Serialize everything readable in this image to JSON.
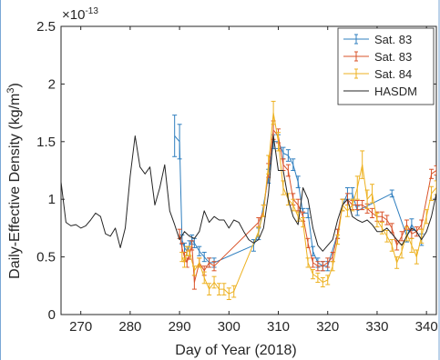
{
  "chart_data": {
    "type": "line",
    "title": "",
    "xlabel": "Day of Year (2018)",
    "ylabel": "Daily-Effective Density (kg/m³)",
    "ylabel_parts": {
      "main": "Daily-Effective Density (kg/m",
      "sup": "3",
      "close": ")"
    },
    "y_multiplier": {
      "base": "×10",
      "exponent": "-13"
    },
    "xlim": [
      266,
      342
    ],
    "ylim": [
      0,
      2.5
    ],
    "xticks": [
      270,
      280,
      290,
      300,
      310,
      320,
      330,
      340
    ],
    "yticks": [
      0,
      0.5,
      1,
      1.5,
      2,
      2.5
    ],
    "ytick_labels": [
      "0",
      "0.5",
      "1",
      "1.5",
      "2",
      "2.5"
    ],
    "legend_position": "top-right",
    "grid": false,
    "series": [
      {
        "name": "Sat. 83",
        "color": "#2f7fbf",
        "style": "errorbar",
        "points": [
          [
            289,
            1.55,
            0.18
          ],
          [
            290,
            1.5,
            0.15
          ],
          [
            290.5,
            0.65,
            0.04
          ],
          [
            291,
            0.58,
            0.04
          ],
          [
            291.5,
            0.55,
            0.04
          ],
          [
            292,
            0.6,
            0.04
          ],
          [
            292.5,
            0.65,
            0.04
          ],
          [
            293,
            0.62,
            0.04
          ],
          [
            294,
            0.55,
            0.04
          ],
          [
            295,
            0.5,
            0.04
          ],
          [
            296,
            0.45,
            0.04
          ],
          [
            297,
            0.45,
            0.04
          ],
          [
            305,
            0.6,
            0.05
          ],
          [
            306,
            0.7,
            0.05
          ],
          [
            308,
            1.2,
            0.06
          ],
          [
            309,
            1.5,
            0.06
          ],
          [
            310,
            1.5,
            0.06
          ],
          [
            311,
            1.4,
            0.05
          ],
          [
            312,
            1.38,
            0.05
          ],
          [
            313,
            1.3,
            0.05
          ],
          [
            314,
            1.15,
            0.05
          ],
          [
            315,
            0.88,
            0.04
          ],
          [
            316,
            0.88,
            0.04
          ],
          [
            317,
            0.55,
            0.04
          ],
          [
            318,
            0.45,
            0.04
          ],
          [
            319,
            0.42,
            0.04
          ],
          [
            320,
            0.42,
            0.04
          ],
          [
            322,
            0.7,
            0.04
          ],
          [
            323,
            0.95,
            0.05
          ],
          [
            324,
            1.05,
            0.05
          ],
          [
            325,
            1.05,
            0.05
          ],
          [
            326,
            0.9,
            0.04
          ],
          [
            333,
            1.05,
            0.03
          ],
          [
            336,
            0.68,
            0.05
          ],
          [
            337,
            0.78,
            0.05
          ],
          [
            339,
            0.65,
            0.05
          ]
        ]
      },
      {
        "name": "Sat. 83",
        "color": "#d9532a",
        "style": "errorbar",
        "points": [
          [
            290,
            0.7,
            0.04
          ],
          [
            290.5,
            0.58,
            0.04
          ],
          [
            291,
            0.5,
            0.04
          ],
          [
            291.5,
            0.45,
            0.04
          ],
          [
            292,
            0.52,
            0.04
          ],
          [
            292.5,
            0.6,
            0.04
          ],
          [
            293,
            0.28,
            0.06
          ],
          [
            294,
            0.45,
            0.04
          ],
          [
            295,
            0.38,
            0.04
          ],
          [
            296,
            0.45,
            0.04
          ],
          [
            297,
            0.42,
            0.04
          ],
          [
            306,
            0.8,
            0.04
          ],
          [
            307,
            0.9,
            0.05
          ],
          [
            308,
            1.25,
            0.06
          ],
          [
            309,
            1.6,
            0.08
          ],
          [
            310,
            1.55,
            0.06
          ],
          [
            311,
            1.3,
            0.05
          ],
          [
            312,
            1.25,
            0.05
          ],
          [
            313,
            1.0,
            0.05
          ],
          [
            314,
            0.95,
            0.05
          ],
          [
            315,
            0.85,
            0.04
          ],
          [
            316,
            0.62,
            0.04
          ],
          [
            317,
            0.45,
            0.04
          ],
          [
            318,
            0.42,
            0.04
          ],
          [
            319,
            0.42,
            0.04
          ],
          [
            320,
            0.45,
            0.04
          ],
          [
            321,
            0.5,
            0.04
          ],
          [
            322,
            0.7,
            0.04
          ],
          [
            323,
            0.95,
            0.05
          ],
          [
            324,
            1.0,
            0.05
          ],
          [
            325,
            0.95,
            0.04
          ],
          [
            326,
            0.95,
            0.04
          ],
          [
            327,
            0.95,
            0.04
          ],
          [
            328,
            0.92,
            0.04
          ],
          [
            329,
            0.88,
            0.04
          ],
          [
            330,
            0.85,
            0.04
          ],
          [
            331,
            0.85,
            0.04
          ],
          [
            332,
            0.82,
            0.04
          ],
          [
            333,
            0.75,
            0.04
          ],
          [
            334,
            0.6,
            0.04
          ],
          [
            335,
            0.68,
            0.04
          ],
          [
            336,
            0.78,
            0.04
          ],
          [
            337,
            0.7,
            0.04
          ],
          [
            338,
            0.72,
            0.04
          ],
          [
            339,
            0.78,
            0.04
          ],
          [
            341,
            1.22,
            0.04
          ],
          [
            342,
            1.25,
            0.04
          ]
        ]
      },
      {
        "name": "Sat. 84",
        "color": "#edb120",
        "style": "errorbar",
        "points": [
          [
            290.5,
            0.5,
            0.04
          ],
          [
            291,
            0.45,
            0.04
          ],
          [
            291.5,
            0.55,
            0.04
          ],
          [
            292,
            0.55,
            0.04
          ],
          [
            293,
            0.38,
            0.04
          ],
          [
            294,
            0.45,
            0.04
          ],
          [
            295,
            0.32,
            0.05
          ],
          [
            296,
            0.22,
            0.05
          ],
          [
            297,
            0.28,
            0.05
          ],
          [
            298,
            0.22,
            0.05
          ],
          [
            299,
            0.22,
            0.05
          ],
          [
            300,
            0.18,
            0.05
          ],
          [
            301,
            0.2,
            0.05
          ],
          [
            306,
            0.72,
            0.04
          ],
          [
            307,
            0.9,
            0.05
          ],
          [
            308,
            1.3,
            0.08
          ],
          [
            309,
            1.75,
            0.1
          ],
          [
            310,
            1.5,
            0.08
          ],
          [
            311,
            1.1,
            0.06
          ],
          [
            312,
            1.0,
            0.05
          ],
          [
            313,
            0.95,
            0.05
          ],
          [
            314,
            0.85,
            0.04
          ],
          [
            315,
            0.8,
            0.04
          ],
          [
            316,
            0.45,
            0.04
          ],
          [
            317,
            0.35,
            0.04
          ],
          [
            318,
            0.32,
            0.04
          ],
          [
            319,
            0.28,
            0.04
          ],
          [
            320,
            0.3,
            0.04
          ],
          [
            321,
            0.42,
            0.04
          ],
          [
            322,
            0.65,
            0.04
          ],
          [
            323,
            0.95,
            0.05
          ],
          [
            324,
            0.9,
            0.05
          ],
          [
            325,
            0.95,
            0.05
          ],
          [
            326,
            1.1,
            0.1
          ],
          [
            327,
            1.3,
            0.12
          ],
          [
            328,
            1.0,
            0.08
          ],
          [
            329,
            1.05,
            0.08
          ],
          [
            330,
            0.82,
            0.06
          ],
          [
            331,
            0.75,
            0.05
          ],
          [
            332,
            0.68,
            0.05
          ],
          [
            333,
            0.6,
            0.05
          ],
          [
            334,
            0.45,
            0.05
          ],
          [
            335,
            0.55,
            0.06
          ],
          [
            336,
            0.7,
            0.06
          ],
          [
            337,
            0.6,
            0.06
          ],
          [
            338,
            0.5,
            0.06
          ],
          [
            339,
            0.68,
            0.06
          ],
          [
            340,
            0.85,
            0.06
          ],
          [
            341,
            1.05,
            0.06
          ],
          [
            342,
            1.1,
            0.06
          ]
        ]
      },
      {
        "name": "HASDM",
        "color": "#262626",
        "style": "line",
        "points": [
          [
            266,
            1.15
          ],
          [
            267,
            0.8
          ],
          [
            268,
            0.77
          ],
          [
            269,
            0.78
          ],
          [
            270,
            0.75
          ],
          [
            271,
            0.77
          ],
          [
            272,
            0.82
          ],
          [
            273,
            0.88
          ],
          [
            274,
            0.85
          ],
          [
            275,
            0.7
          ],
          [
            276,
            0.68
          ],
          [
            277,
            0.75
          ],
          [
            278,
            0.58
          ],
          [
            279,
            0.75
          ],
          [
            280,
            1.2
          ],
          [
            281,
            1.55
          ],
          [
            282,
            1.28
          ],
          [
            283,
            1.22
          ],
          [
            284,
            1.28
          ],
          [
            285,
            0.95
          ],
          [
            286,
            1.1
          ],
          [
            287,
            1.3
          ],
          [
            288,
            0.9
          ],
          [
            289,
            0.78
          ],
          [
            290,
            0.65
          ],
          [
            291,
            0.72
          ],
          [
            292,
            0.68
          ],
          [
            293,
            0.66
          ],
          [
            294,
            0.72
          ],
          [
            295,
            0.9
          ],
          [
            296,
            0.8
          ],
          [
            297,
            0.85
          ],
          [
            298,
            0.82
          ],
          [
            299,
            0.82
          ],
          [
            300,
            0.75
          ],
          [
            301,
            0.82
          ],
          [
            302,
            0.8
          ],
          [
            303,
            0.72
          ],
          [
            304,
            0.65
          ],
          [
            305,
            0.62
          ],
          [
            306,
            0.65
          ],
          [
            307,
            0.75
          ],
          [
            308,
            1.05
          ],
          [
            309,
            1.55
          ],
          [
            310,
            1.25
          ],
          [
            311,
            1.25
          ],
          [
            312,
            1.0
          ],
          [
            313,
            0.85
          ],
          [
            314,
            0.78
          ],
          [
            315,
            1.1
          ],
          [
            316,
            1.0
          ],
          [
            317,
            0.75
          ],
          [
            318,
            0.6
          ],
          [
            319,
            0.55
          ],
          [
            320,
            0.6
          ],
          [
            321,
            0.65
          ],
          [
            322,
            0.82
          ],
          [
            323,
            0.95
          ],
          [
            324,
            1.0
          ],
          [
            325,
            0.85
          ],
          [
            326,
            0.82
          ],
          [
            327,
            0.8
          ],
          [
            328,
            0.82
          ],
          [
            329,
            0.78
          ],
          [
            330,
            0.72
          ],
          [
            331,
            0.72
          ],
          [
            332,
            0.75
          ],
          [
            333,
            0.7
          ],
          [
            334,
            0.65
          ],
          [
            335,
            0.6
          ],
          [
            336,
            0.68
          ],
          [
            337,
            0.75
          ],
          [
            338,
            0.72
          ],
          [
            339,
            0.65
          ],
          [
            340,
            0.72
          ],
          [
            341,
            0.85
          ],
          [
            342,
            1.05
          ]
        ]
      }
    ]
  }
}
